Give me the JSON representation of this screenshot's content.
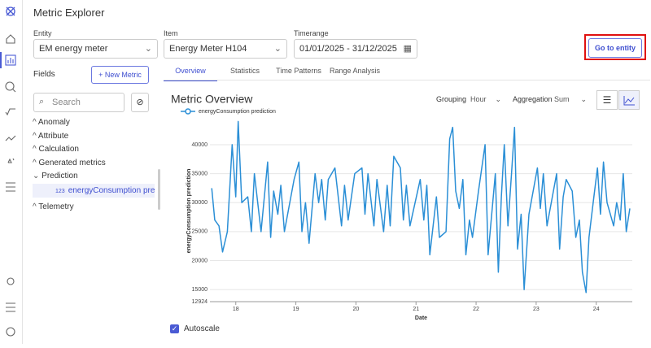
{
  "header": {
    "title": "Metric Explorer"
  },
  "filters": {
    "entity": {
      "label": "Entity",
      "value": "EM energy meter"
    },
    "item": {
      "label": "Item",
      "value": "Energy Meter H104"
    },
    "timerange": {
      "label": "Timerange",
      "value": "01/01/2025 - 31/12/2025"
    },
    "action": "Go to entity"
  },
  "fields": {
    "title": "Fields",
    "new_metric": "+ New Metric",
    "search": "Search",
    "tree": [
      {
        "label": "Anomaly"
      },
      {
        "label": "Attribute"
      },
      {
        "label": "Calculation"
      },
      {
        "label": "Generated metrics"
      },
      {
        "label": "Prediction",
        "children": [
          {
            "icon": "123",
            "label": "energyConsumption predi..."
          }
        ]
      },
      {
        "label": "Telemetry"
      }
    ]
  },
  "tabs": [
    "Overview",
    "Statistics",
    "Time Patterns",
    "Range Analysis"
  ],
  "controls": {
    "grouping_label": "Grouping",
    "grouping": "Hour",
    "aggregation_label": "Aggregation",
    "aggregation": "Sum"
  },
  "autoscale": "Autoscale",
  "chart_data": {
    "type": "line",
    "title": "Metric Overview",
    "x_label": "Date",
    "y_label": "energyConsumption prediction",
    "x": [
      17.6,
      17.65,
      17.72,
      17.78,
      17.86,
      17.94,
      18.0,
      18.04,
      18.1,
      18.2,
      18.26,
      18.31,
      18.42,
      18.53,
      18.58,
      18.63,
      18.7,
      18.75,
      18.81,
      18.97,
      19.05,
      19.1,
      19.16,
      19.22,
      19.32,
      19.38,
      19.43,
      19.49,
      19.54,
      19.65,
      19.76,
      19.81,
      19.87,
      19.98,
      20.1,
      20.15,
      20.2,
      20.3,
      20.35,
      20.46,
      20.52,
      20.57,
      20.63,
      20.74,
      20.79,
      20.84,
      20.9,
      21.07,
      21.13,
      21.18,
      21.23,
      21.34,
      21.39,
      21.5,
      21.56,
      21.61,
      21.66,
      21.72,
      21.78,
      21.83,
      21.89,
      21.94,
      22.04,
      22.15,
      22.2,
      22.32,
      22.37,
      22.42,
      22.47,
      22.53,
      22.59,
      22.64,
      22.69,
      22.75,
      22.8,
      22.88,
      23.02,
      23.07,
      23.12,
      23.18,
      23.34,
      23.39,
      23.45,
      23.5,
      23.6,
      23.66,
      23.72,
      23.77,
      23.83,
      23.88,
      23.96,
      24.02,
      24.07,
      24.12,
      24.18,
      24.29,
      24.34,
      24.4,
      24.45,
      24.5,
      24.56
    ],
    "series": [
      {
        "name": "energyConsumption prediction",
        "color": "#2b8fd6",
        "values": [
          32500,
          27000,
          26000,
          21500,
          25000,
          40000,
          31000,
          44000,
          30000,
          31000,
          25000,
          35000,
          25000,
          37000,
          24000,
          32000,
          28000,
          33000,
          25000,
          34000,
          37000,
          25000,
          30000,
          23000,
          35000,
          30000,
          34000,
          27000,
          34000,
          36000,
          26000,
          33000,
          27000,
          35000,
          36000,
          28000,
          35000,
          26000,
          34000,
          25000,
          33000,
          26000,
          38000,
          36000,
          27000,
          33000,
          26000,
          34000,
          27000,
          33000,
          21000,
          31000,
          24000,
          25000,
          41000,
          43000,
          32000,
          29000,
          34000,
          21000,
          27000,
          24000,
          32000,
          40000,
          21000,
          35000,
          18000,
          31000,
          40000,
          26000,
          35000,
          43000,
          22000,
          28000,
          15000,
          28000,
          36000,
          29000,
          35000,
          26000,
          35000,
          22000,
          31000,
          34000,
          32000,
          24000,
          27000,
          18000,
          14500,
          24000,
          31000,
          36000,
          28000,
          37000,
          30000,
          26000,
          30000,
          27000,
          35000,
          25000,
          29000
        ]
      }
    ],
    "xlim": [
      17.57,
      24.6
    ],
    "xticks": [
      18,
      19,
      20,
      21,
      22,
      23,
      24
    ],
    "ylim": [
      12924,
      44200
    ],
    "yticks": [
      12924,
      15000,
      20000,
      25000,
      30000,
      35000,
      40000
    ],
    "grid": true
  }
}
